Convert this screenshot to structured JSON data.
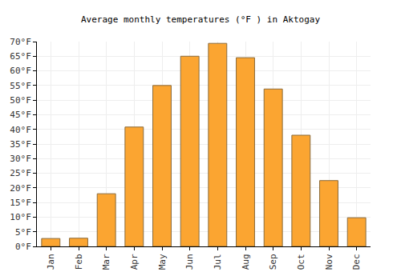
{
  "chart_data": {
    "type": "bar",
    "title": "Average monthly temperatures (°F ) in Aktogay",
    "categories": [
      "Jan",
      "Feb",
      "Mar",
      "Apr",
      "May",
      "Jun",
      "Jul",
      "Aug",
      "Sep",
      "Oct",
      "Nov",
      "Dec"
    ],
    "values": [
      2.7,
      2.8,
      18,
      40.8,
      55,
      65,
      69.4,
      64.5,
      53.8,
      38,
      22.5,
      9.8
    ],
    "color": "#fba531",
    "ylim": [
      0,
      70
    ],
    "yticks": [
      {
        "value": 0,
        "label": "0°F"
      },
      {
        "value": 5,
        "label": "5°F"
      },
      {
        "value": 10,
        "label": "10°F"
      },
      {
        "value": 15,
        "label": "15°F"
      },
      {
        "value": 20,
        "label": "20°F"
      },
      {
        "value": 25,
        "label": "25°F"
      },
      {
        "value": 30,
        "label": "30°F"
      },
      {
        "value": 35,
        "label": "35°F"
      },
      {
        "value": 40,
        "label": "40°F"
      },
      {
        "value": 45,
        "label": "45°F"
      },
      {
        "value": 50,
        "label": "50°F"
      },
      {
        "value": 55,
        "label": "55°F"
      },
      {
        "value": 60,
        "label": "60°F"
      },
      {
        "value": 65,
        "label": "65°F"
      },
      {
        "value": 70,
        "label": "70°F"
      }
    ],
    "grid": true
  }
}
